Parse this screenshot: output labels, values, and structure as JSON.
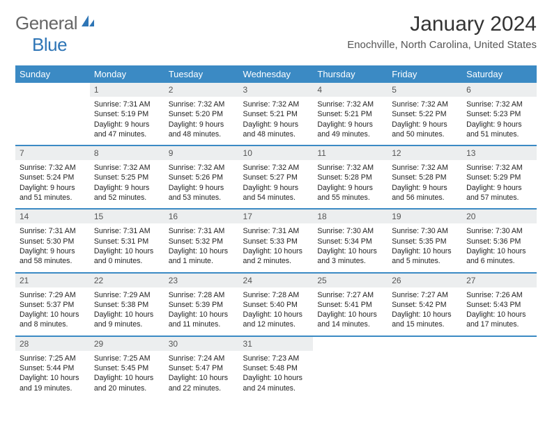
{
  "brand": {
    "name1": "General",
    "name2": "Blue"
  },
  "title": "January 2024",
  "location": "Enochville, North Carolina, United States",
  "colors": {
    "header_bg": "#3b8ac4",
    "header_text": "#ffffff",
    "daynum_bg": "#eceeef",
    "row_border": "#3b8ac4",
    "brand_blue": "#2e75b6"
  },
  "weekdays": [
    "Sunday",
    "Monday",
    "Tuesday",
    "Wednesday",
    "Thursday",
    "Friday",
    "Saturday"
  ],
  "weeks": [
    [
      {
        "day": "",
        "sunrise": "",
        "sunset": "",
        "daylight1": "",
        "daylight2": "",
        "empty": true
      },
      {
        "day": "1",
        "sunrise": "Sunrise: 7:31 AM",
        "sunset": "Sunset: 5:19 PM",
        "daylight1": "Daylight: 9 hours",
        "daylight2": "and 47 minutes."
      },
      {
        "day": "2",
        "sunrise": "Sunrise: 7:32 AM",
        "sunset": "Sunset: 5:20 PM",
        "daylight1": "Daylight: 9 hours",
        "daylight2": "and 48 minutes."
      },
      {
        "day": "3",
        "sunrise": "Sunrise: 7:32 AM",
        "sunset": "Sunset: 5:21 PM",
        "daylight1": "Daylight: 9 hours",
        "daylight2": "and 48 minutes."
      },
      {
        "day": "4",
        "sunrise": "Sunrise: 7:32 AM",
        "sunset": "Sunset: 5:21 PM",
        "daylight1": "Daylight: 9 hours",
        "daylight2": "and 49 minutes."
      },
      {
        "day": "5",
        "sunrise": "Sunrise: 7:32 AM",
        "sunset": "Sunset: 5:22 PM",
        "daylight1": "Daylight: 9 hours",
        "daylight2": "and 50 minutes."
      },
      {
        "day": "6",
        "sunrise": "Sunrise: 7:32 AM",
        "sunset": "Sunset: 5:23 PM",
        "daylight1": "Daylight: 9 hours",
        "daylight2": "and 51 minutes."
      }
    ],
    [
      {
        "day": "7",
        "sunrise": "Sunrise: 7:32 AM",
        "sunset": "Sunset: 5:24 PM",
        "daylight1": "Daylight: 9 hours",
        "daylight2": "and 51 minutes."
      },
      {
        "day": "8",
        "sunrise": "Sunrise: 7:32 AM",
        "sunset": "Sunset: 5:25 PM",
        "daylight1": "Daylight: 9 hours",
        "daylight2": "and 52 minutes."
      },
      {
        "day": "9",
        "sunrise": "Sunrise: 7:32 AM",
        "sunset": "Sunset: 5:26 PM",
        "daylight1": "Daylight: 9 hours",
        "daylight2": "and 53 minutes."
      },
      {
        "day": "10",
        "sunrise": "Sunrise: 7:32 AM",
        "sunset": "Sunset: 5:27 PM",
        "daylight1": "Daylight: 9 hours",
        "daylight2": "and 54 minutes."
      },
      {
        "day": "11",
        "sunrise": "Sunrise: 7:32 AM",
        "sunset": "Sunset: 5:28 PM",
        "daylight1": "Daylight: 9 hours",
        "daylight2": "and 55 minutes."
      },
      {
        "day": "12",
        "sunrise": "Sunrise: 7:32 AM",
        "sunset": "Sunset: 5:28 PM",
        "daylight1": "Daylight: 9 hours",
        "daylight2": "and 56 minutes."
      },
      {
        "day": "13",
        "sunrise": "Sunrise: 7:32 AM",
        "sunset": "Sunset: 5:29 PM",
        "daylight1": "Daylight: 9 hours",
        "daylight2": "and 57 minutes."
      }
    ],
    [
      {
        "day": "14",
        "sunrise": "Sunrise: 7:31 AM",
        "sunset": "Sunset: 5:30 PM",
        "daylight1": "Daylight: 9 hours",
        "daylight2": "and 58 minutes."
      },
      {
        "day": "15",
        "sunrise": "Sunrise: 7:31 AM",
        "sunset": "Sunset: 5:31 PM",
        "daylight1": "Daylight: 10 hours",
        "daylight2": "and 0 minutes."
      },
      {
        "day": "16",
        "sunrise": "Sunrise: 7:31 AM",
        "sunset": "Sunset: 5:32 PM",
        "daylight1": "Daylight: 10 hours",
        "daylight2": "and 1 minute."
      },
      {
        "day": "17",
        "sunrise": "Sunrise: 7:31 AM",
        "sunset": "Sunset: 5:33 PM",
        "daylight1": "Daylight: 10 hours",
        "daylight2": "and 2 minutes."
      },
      {
        "day": "18",
        "sunrise": "Sunrise: 7:30 AM",
        "sunset": "Sunset: 5:34 PM",
        "daylight1": "Daylight: 10 hours",
        "daylight2": "and 3 minutes."
      },
      {
        "day": "19",
        "sunrise": "Sunrise: 7:30 AM",
        "sunset": "Sunset: 5:35 PM",
        "daylight1": "Daylight: 10 hours",
        "daylight2": "and 5 minutes."
      },
      {
        "day": "20",
        "sunrise": "Sunrise: 7:30 AM",
        "sunset": "Sunset: 5:36 PM",
        "daylight1": "Daylight: 10 hours",
        "daylight2": "and 6 minutes."
      }
    ],
    [
      {
        "day": "21",
        "sunrise": "Sunrise: 7:29 AM",
        "sunset": "Sunset: 5:37 PM",
        "daylight1": "Daylight: 10 hours",
        "daylight2": "and 8 minutes."
      },
      {
        "day": "22",
        "sunrise": "Sunrise: 7:29 AM",
        "sunset": "Sunset: 5:38 PM",
        "daylight1": "Daylight: 10 hours",
        "daylight2": "and 9 minutes."
      },
      {
        "day": "23",
        "sunrise": "Sunrise: 7:28 AM",
        "sunset": "Sunset: 5:39 PM",
        "daylight1": "Daylight: 10 hours",
        "daylight2": "and 11 minutes."
      },
      {
        "day": "24",
        "sunrise": "Sunrise: 7:28 AM",
        "sunset": "Sunset: 5:40 PM",
        "daylight1": "Daylight: 10 hours",
        "daylight2": "and 12 minutes."
      },
      {
        "day": "25",
        "sunrise": "Sunrise: 7:27 AM",
        "sunset": "Sunset: 5:41 PM",
        "daylight1": "Daylight: 10 hours",
        "daylight2": "and 14 minutes."
      },
      {
        "day": "26",
        "sunrise": "Sunrise: 7:27 AM",
        "sunset": "Sunset: 5:42 PM",
        "daylight1": "Daylight: 10 hours",
        "daylight2": "and 15 minutes."
      },
      {
        "day": "27",
        "sunrise": "Sunrise: 7:26 AM",
        "sunset": "Sunset: 5:43 PM",
        "daylight1": "Daylight: 10 hours",
        "daylight2": "and 17 minutes."
      }
    ],
    [
      {
        "day": "28",
        "sunrise": "Sunrise: 7:25 AM",
        "sunset": "Sunset: 5:44 PM",
        "daylight1": "Daylight: 10 hours",
        "daylight2": "and 19 minutes."
      },
      {
        "day": "29",
        "sunrise": "Sunrise: 7:25 AM",
        "sunset": "Sunset: 5:45 PM",
        "daylight1": "Daylight: 10 hours",
        "daylight2": "and 20 minutes."
      },
      {
        "day": "30",
        "sunrise": "Sunrise: 7:24 AM",
        "sunset": "Sunset: 5:47 PM",
        "daylight1": "Daylight: 10 hours",
        "daylight2": "and 22 minutes."
      },
      {
        "day": "31",
        "sunrise": "Sunrise: 7:23 AM",
        "sunset": "Sunset: 5:48 PM",
        "daylight1": "Daylight: 10 hours",
        "daylight2": "and 24 minutes."
      },
      {
        "day": "",
        "sunrise": "",
        "sunset": "",
        "daylight1": "",
        "daylight2": "",
        "empty": true
      },
      {
        "day": "",
        "sunrise": "",
        "sunset": "",
        "daylight1": "",
        "daylight2": "",
        "empty": true
      },
      {
        "day": "",
        "sunrise": "",
        "sunset": "",
        "daylight1": "",
        "daylight2": "",
        "empty": true
      }
    ]
  ]
}
